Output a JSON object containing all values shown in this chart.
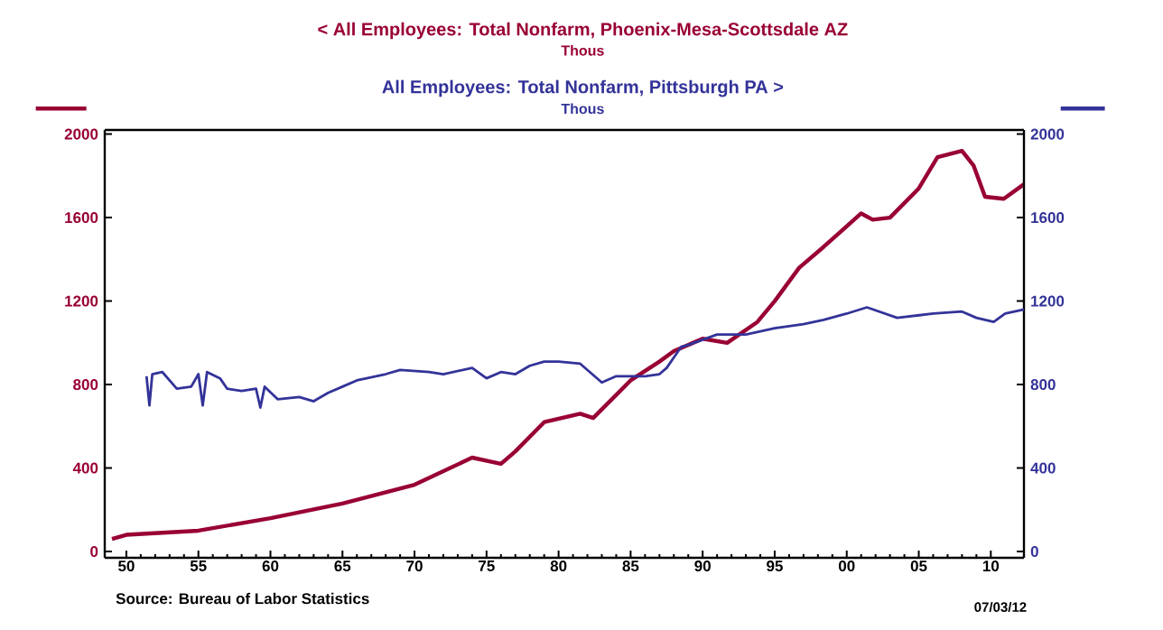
{
  "chart_data": {
    "type": "line",
    "annotations": [
      "Thous",
      "Thous",
      "Source:  Bureau of Labor Statistics",
      "07/03/12"
    ],
    "xlim": [
      1948.5,
      2012.3
    ],
    "ylim": [
      -30,
      2020
    ],
    "y2lim": [
      -30,
      2020
    ],
    "xticks": [
      {
        "value": 1950,
        "label": "50"
      },
      {
        "value": 1955,
        "label": "55"
      },
      {
        "value": 1960,
        "label": "60"
      },
      {
        "value": 1965,
        "label": "65"
      },
      {
        "value": 1970,
        "label": "70"
      },
      {
        "value": 1975,
        "label": "75"
      },
      {
        "value": 1980,
        "label": "80"
      },
      {
        "value": 1985,
        "label": "85"
      },
      {
        "value": 1990,
        "label": "90"
      },
      {
        "value": 1995,
        "label": "95"
      },
      {
        "value": 2000,
        "label": "00"
      },
      {
        "value": 2005,
        "label": "05"
      },
      {
        "value": 2010,
        "label": "10"
      }
    ],
    "yticks": [
      0,
      400,
      800,
      1200,
      1600,
      2000
    ],
    "y2ticks": [
      0,
      400,
      800,
      1200,
      1600,
      2000
    ],
    "legend": "top",
    "grid": false,
    "marker": "none",
    "line_style": "solid",
    "series": [
      {
        "name": "<  All Employees: Total Nonfarm, Phoenix-Mesa-Scottsdale AZ",
        "color": "#990033",
        "x": [
          1949,
          1950,
          1955,
          1960,
          1965,
          1970,
          1974,
          1976,
          1977,
          1979,
          1981.5,
          1982.4,
          1985,
          1987,
          1988,
          1990,
          1991.7,
          1993.8,
          1995,
          1996.7,
          1998.4,
          2001,
          2001.8,
          2003,
          2005,
          2006.3,
          2008,
          2008.8,
          2009.6,
          2010.9,
          2012.3
        ],
        "values": [
          60,
          80,
          100,
          160,
          230,
          320,
          450,
          420,
          480,
          620,
          660,
          640,
          820,
          910,
          960,
          1020,
          1000,
          1100,
          1200,
          1360,
          1460,
          1620,
          1590,
          1600,
          1740,
          1890,
          1920,
          1850,
          1700,
          1690,
          1760
        ]
      },
      {
        "name": "All Employees: Total Nonfarm, Pittsburgh PA  >",
        "color": "#333399",
        "axis": "y2",
        "x": [
          1951.4,
          1951.6,
          1951.8,
          1952.5,
          1953.5,
          1954.5,
          1955,
          1955.3,
          1955.6,
          1956.5,
          1957,
          1958,
          1959,
          1959.3,
          1959.6,
          1960.5,
          1962,
          1963,
          1964,
          1965,
          1966,
          1968,
          1969,
          1971,
          1972,
          1974,
          1975,
          1976,
          1977,
          1978,
          1979,
          1980,
          1981.5,
          1983,
          1984,
          1986,
          1987,
          1987.5,
          1988.5,
          1989,
          1991,
          1993,
          1995,
          1997,
          1998.4,
          2000,
          2001.4,
          2003.5,
          2006,
          2008,
          2009,
          2010.2,
          2011,
          2012.3
        ],
        "values": [
          840,
          700,
          850,
          860,
          780,
          790,
          850,
          700,
          860,
          830,
          780,
          770,
          780,
          690,
          790,
          730,
          740,
          720,
          760,
          790,
          820,
          850,
          870,
          860,
          850,
          880,
          830,
          860,
          850,
          890,
          910,
          910,
          900,
          810,
          840,
          840,
          850,
          880,
          980,
          990,
          1040,
          1040,
          1070,
          1090,
          1110,
          1140,
          1170,
          1120,
          1140,
          1150,
          1120,
          1100,
          1140,
          1160
        ]
      }
    ]
  }
}
